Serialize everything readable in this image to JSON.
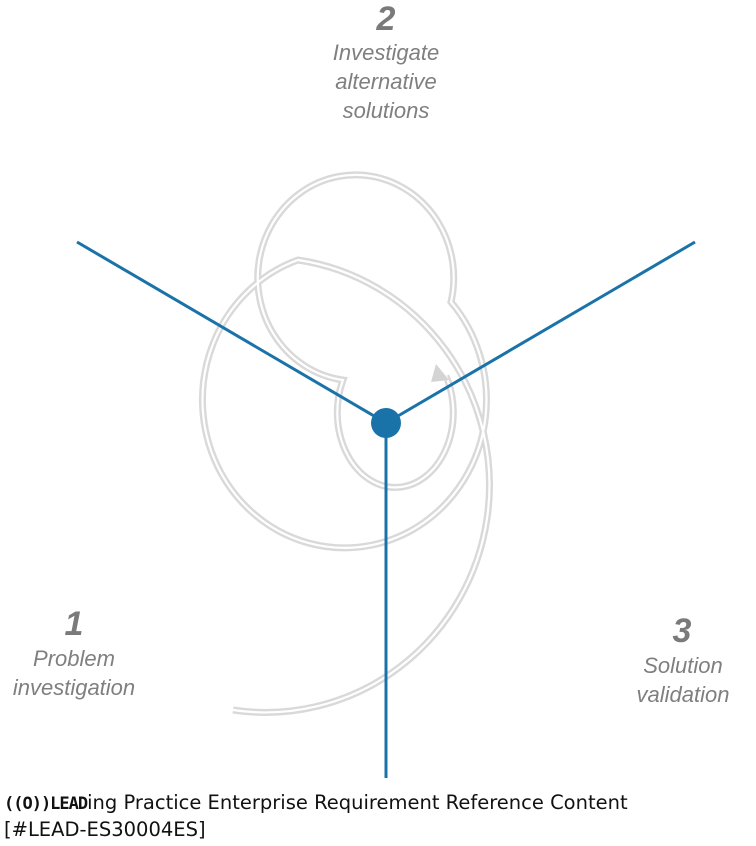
{
  "phases": [
    {
      "number": "1",
      "label": "Problem\ninvestigation"
    },
    {
      "number": "2",
      "label": "Investigate\nalternative\nsolutions"
    },
    {
      "number": "3",
      "label": "Solution\nvalidation"
    }
  ],
  "footer": {
    "logo": "((O))LEAD",
    "text": "ing Practice Enterprise Requirement Reference Content",
    "code": "[#LEAD-ES30004ES]"
  },
  "colors": {
    "spiral": "#d9d9d9",
    "axes": "#1a73a8",
    "hub": "#1a73a8",
    "label": "#7f7f7f"
  }
}
